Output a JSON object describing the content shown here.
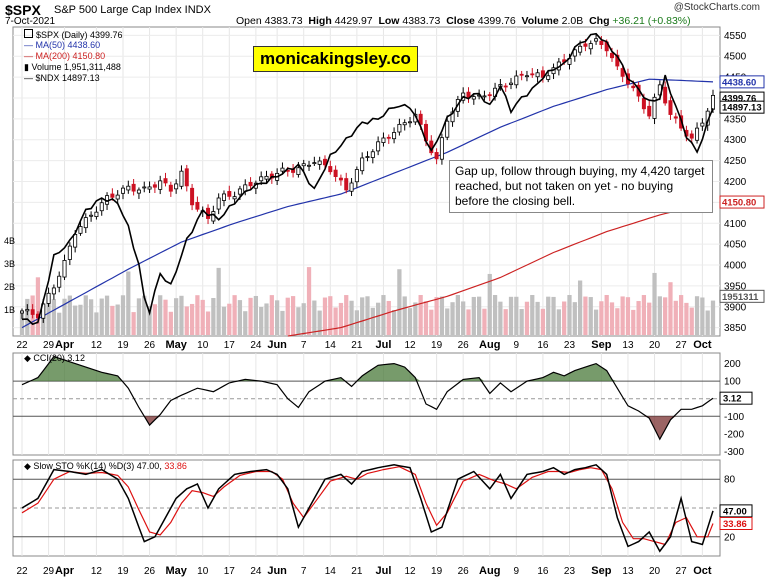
{
  "header": {
    "symbol": "$SPX",
    "name": "S&P 500 Large Cap Index INDX",
    "date": "7-Oct-2021",
    "copyright": "@StockCharts.com",
    "open_label": "Open",
    "open": "4383.73",
    "high_label": "High",
    "high": "4429.97",
    "low_label": "Low",
    "low": "4383.73",
    "close_label": "Close",
    "close": "4399.76",
    "volume_label": "Volume",
    "volume": "2.0B",
    "chg_label": "Chg",
    "chg": "+36.21 (+0.83%)"
  },
  "brand": "monicakingsley.co",
  "annotation": "Gap up, follow through buying, my 4,420 target reached, but not taken on yet - no buying before the closing bell.",
  "colors": {
    "up": "#000000",
    "down": "#cc1122",
    "ma50": "#2233aa",
    "ma200": "#cc2222",
    "ndx": "#000000",
    "vol_up": "#c0c0c0",
    "vol_down": "#f0b0b8",
    "cci_fill_pos": "#4a7a3a",
    "cci_fill_neg": "#7a3030",
    "stoch_d": "#dd1111"
  },
  "chart_data": [
    {
      "type": "candlestick",
      "title": "$SPX (Daily) 4399.76",
      "legend": [
        {
          "name": "$SPX (Daily)",
          "value": "4399.76"
        },
        {
          "name": "MA(50)",
          "value": "4438.60"
        },
        {
          "name": "MA(200)",
          "value": "4150.80"
        },
        {
          "name": "Volume",
          "value": "1,951,311,488"
        },
        {
          "name": "$NDX",
          "value": "14897.13"
        }
      ],
      "ylim": [
        3830,
        4570
      ],
      "y_ticks": [
        3850,
        3900,
        3950,
        4000,
        4050,
        4100,
        4150,
        4200,
        4250,
        4300,
        4350,
        4400,
        4450,
        4500,
        4550
      ],
      "volume_labels": [
        "4B",
        "3B",
        "2B",
        "1B"
      ],
      "value_tags": [
        {
          "label": "4438.60",
          "value": 4438.6
        },
        {
          "label": "4399.76",
          "value": 4399.76
        },
        {
          "label": "14897.13",
          "value": 4378
        },
        {
          "label": "4150.80",
          "value": 4150.8
        },
        {
          "label": "1951311",
          "value": 3925
        }
      ],
      "x_labels": [
        "22",
        "29",
        "Apr",
        "12",
        "19",
        "26",
        "May",
        "10",
        "17",
        "24",
        "Jun",
        "7",
        "14",
        "21",
        "Jul",
        "12",
        "19",
        "26",
        "Aug",
        "9",
        "16",
        "23",
        "Sep",
        "13",
        "20",
        "27",
        "Oct"
      ],
      "x_label_index": [
        0,
        5,
        8,
        14,
        19,
        24,
        29,
        34,
        39,
        44,
        48,
        53,
        58,
        63,
        68,
        73,
        78,
        83,
        88,
        93,
        98,
        103,
        109,
        114,
        119,
        124,
        128
      ],
      "close_anchors": [
        [
          0,
          3890
        ],
        [
          3,
          3880
        ],
        [
          6,
          3950
        ],
        [
          8,
          4005
        ],
        [
          10,
          4080
        ],
        [
          13,
          4120
        ],
        [
          16,
          4160
        ],
        [
          20,
          4185
        ],
        [
          23,
          4180
        ],
        [
          26,
          4200
        ],
        [
          28,
          4180
        ],
        [
          30,
          4220
        ],
        [
          32,
          4150
        ],
        [
          35,
          4110
        ],
        [
          37,
          4160
        ],
        [
          40,
          4170
        ],
        [
          43,
          4195
        ],
        [
          46,
          4210
        ],
        [
          49,
          4225
        ],
        [
          52,
          4230
        ],
        [
          55,
          4250
        ],
        [
          58,
          4230
        ],
        [
          61,
          4180
        ],
        [
          64,
          4250
        ],
        [
          67,
          4290
        ],
        [
          70,
          4320
        ],
        [
          72,
          4340
        ],
        [
          74,
          4360
        ],
        [
          76,
          4300
        ],
        [
          78,
          4250
        ],
        [
          80,
          4350
        ],
        [
          83,
          4410
        ],
        [
          86,
          4400
        ],
        [
          89,
          4420
        ],
        [
          92,
          4440
        ],
        [
          95,
          4460
        ],
        [
          98,
          4450
        ],
        [
          101,
          4480
        ],
        [
          104,
          4510
        ],
        [
          106,
          4530
        ],
        [
          108,
          4535
        ],
        [
          110,
          4520
        ],
        [
          112,
          4470
        ],
        [
          114,
          4440
        ],
        [
          116,
          4400
        ],
        [
          118,
          4360
        ],
        [
          120,
          4430
        ],
        [
          122,
          4360
        ],
        [
          124,
          4330
        ],
        [
          126,
          4300
        ],
        [
          128,
          4345
        ],
        [
          130,
          4400
        ]
      ],
      "ndx_anchors": [
        [
          0,
          3870
        ],
        [
          3,
          3860
        ],
        [
          6,
          4020
        ],
        [
          9,
          4055
        ],
        [
          12,
          4130
        ],
        [
          15,
          4160
        ],
        [
          18,
          4150
        ],
        [
          20,
          4090
        ],
        [
          22,
          4000
        ],
        [
          23,
          3920
        ],
        [
          24,
          3890
        ],
        [
          26,
          3980
        ],
        [
          28,
          3950
        ],
        [
          31,
          4060
        ],
        [
          34,
          4130
        ],
        [
          37,
          4110
        ],
        [
          40,
          4150
        ],
        [
          43,
          4185
        ],
        [
          46,
          4200
        ],
        [
          49,
          4220
        ],
        [
          52,
          4240
        ],
        [
          55,
          4180
        ],
        [
          58,
          4260
        ],
        [
          61,
          4300
        ],
        [
          64,
          4340
        ],
        [
          67,
          4350
        ],
        [
          70,
          4380
        ],
        [
          73,
          4380
        ],
        [
          75,
          4330
        ],
        [
          77,
          4270
        ],
        [
          80,
          4350
        ],
        [
          83,
          4400
        ],
        [
          86,
          4410
        ],
        [
          88,
          4380
        ],
        [
          90,
          4430
        ],
        [
          92,
          4370
        ],
        [
          94,
          4400
        ],
        [
          96,
          4420
        ],
        [
          98,
          4450
        ],
        [
          100,
          4470
        ],
        [
          102,
          4480
        ],
        [
          104,
          4520
        ],
        [
          106,
          4540
        ],
        [
          108,
          4555
        ],
        [
          110,
          4530
        ],
        [
          112,
          4500
        ],
        [
          114,
          4450
        ],
        [
          116,
          4420
        ],
        [
          118,
          4390
        ],
        [
          120,
          4400
        ],
        [
          121,
          4450
        ],
        [
          123,
          4380
        ],
        [
          125,
          4310
        ],
        [
          127,
          4270
        ],
        [
          129,
          4340
        ],
        [
          130,
          4378
        ]
      ],
      "ma50_anchors": [
        [
          0,
          3850
        ],
        [
          10,
          3920
        ],
        [
          20,
          3990
        ],
        [
          30,
          4055
        ],
        [
          40,
          4100
        ],
        [
          50,
          4140
        ],
        [
          60,
          4170
        ],
        [
          70,
          4220
        ],
        [
          80,
          4270
        ],
        [
          90,
          4330
        ],
        [
          100,
          4380
        ],
        [
          110,
          4420
        ],
        [
          118,
          4445
        ],
        [
          124,
          4442
        ],
        [
          130,
          4438.6
        ]
      ],
      "ma200_anchors": [
        [
          50,
          3830
        ],
        [
          60,
          3850
        ],
        [
          70,
          3890
        ],
        [
          80,
          3925
        ],
        [
          90,
          3970
        ],
        [
          100,
          4030
        ],
        [
          110,
          4080
        ],
        [
          120,
          4120
        ],
        [
          130,
          4150.8
        ]
      ]
    },
    {
      "type": "line",
      "title": "CCI(20) 3.12",
      "series": [
        {
          "name": "CCI(20)",
          "last": "3.12"
        }
      ],
      "ylim": [
        -320,
        260
      ],
      "y_ticks": [
        200,
        100,
        -100,
        -200,
        -300
      ],
      "levels": [
        100,
        0,
        -100
      ],
      "value_tag": "3.12",
      "anchors": [
        [
          0,
          80
        ],
        [
          3,
          120
        ],
        [
          6,
          240
        ],
        [
          9,
          210
        ],
        [
          12,
          180
        ],
        [
          15,
          150
        ],
        [
          18,
          130
        ],
        [
          20,
          60
        ],
        [
          22,
          -50
        ],
        [
          24,
          -150
        ],
        [
          26,
          -90
        ],
        [
          28,
          -10
        ],
        [
          30,
          20
        ],
        [
          33,
          60
        ],
        [
          36,
          40
        ],
        [
          39,
          90
        ],
        [
          42,
          110
        ],
        [
          45,
          100
        ],
        [
          48,
          80
        ],
        [
          50,
          0
        ],
        [
          52,
          -50
        ],
        [
          54,
          40
        ],
        [
          57,
          100
        ],
        [
          60,
          120
        ],
        [
          62,
          70
        ],
        [
          64,
          130
        ],
        [
          67,
          190
        ],
        [
          70,
          200
        ],
        [
          72,
          180
        ],
        [
          74,
          120
        ],
        [
          76,
          -30
        ],
        [
          78,
          -60
        ],
        [
          80,
          40
        ],
        [
          83,
          110
        ],
        [
          86,
          120
        ],
        [
          88,
          30
        ],
        [
          90,
          90
        ],
        [
          92,
          40
        ],
        [
          95,
          100
        ],
        [
          98,
          120
        ],
        [
          100,
          150
        ],
        [
          102,
          130
        ],
        [
          104,
          160
        ],
        [
          106,
          180
        ],
        [
          108,
          200
        ],
        [
          110,
          160
        ],
        [
          112,
          60
        ],
        [
          114,
          -40
        ],
        [
          116,
          -70
        ],
        [
          118,
          -110
        ],
        [
          120,
          -230
        ],
        [
          122,
          -120
        ],
        [
          124,
          -60
        ],
        [
          126,
          -60
        ],
        [
          128,
          -40
        ],
        [
          130,
          3.12
        ]
      ]
    },
    {
      "type": "line",
      "title": "Slow STO %K(14) %D(3) 47.00, 33.86",
      "series": [
        {
          "name": "%K(14)",
          "last": "47.00"
        },
        {
          "name": "%D(3)",
          "last": "33.86"
        }
      ],
      "ylim": [
        0,
        100
      ],
      "y_ticks": [
        80,
        50,
        20
      ],
      "levels": [
        80,
        50,
        20
      ],
      "value_tags": [
        "47.00",
        "33.86"
      ],
      "k_anchors": [
        [
          0,
          50
        ],
        [
          3,
          60
        ],
        [
          6,
          90
        ],
        [
          9,
          88
        ],
        [
          12,
          85
        ],
        [
          15,
          90
        ],
        [
          18,
          80
        ],
        [
          20,
          60
        ],
        [
          22,
          30
        ],
        [
          23,
          15
        ],
        [
          25,
          20
        ],
        [
          27,
          40
        ],
        [
          29,
          60
        ],
        [
          31,
          70
        ],
        [
          33,
          75
        ],
        [
          35,
          50
        ],
        [
          37,
          70
        ],
        [
          40,
          85
        ],
        [
          43,
          88
        ],
        [
          46,
          90
        ],
        [
          48,
          85
        ],
        [
          50,
          70
        ],
        [
          52,
          30
        ],
        [
          54,
          50
        ],
        [
          57,
          80
        ],
        [
          60,
          85
        ],
        [
          62,
          75
        ],
        [
          64,
          88
        ],
        [
          67,
          92
        ],
        [
          70,
          95
        ],
        [
          73,
          92
        ],
        [
          75,
          60
        ],
        [
          77,
          25
        ],
        [
          79,
          30
        ],
        [
          82,
          80
        ],
        [
          85,
          88
        ],
        [
          88,
          70
        ],
        [
          90,
          85
        ],
        [
          92,
          60
        ],
        [
          95,
          85
        ],
        [
          98,
          88
        ],
        [
          100,
          92
        ],
        [
          102,
          85
        ],
        [
          104,
          90
        ],
        [
          106,
          92
        ],
        [
          108,
          95
        ],
        [
          110,
          85
        ],
        [
          112,
          40
        ],
        [
          114,
          10
        ],
        [
          116,
          15
        ],
        [
          118,
          25
        ],
        [
          120,
          5
        ],
        [
          122,
          20
        ],
        [
          124,
          60
        ],
        [
          126,
          15
        ],
        [
          128,
          12
        ],
        [
          130,
          47
        ]
      ],
      "d_anchors": [
        [
          0,
          45
        ],
        [
          3,
          55
        ],
        [
          6,
          80
        ],
        [
          9,
          88
        ],
        [
          12,
          86
        ],
        [
          15,
          87
        ],
        [
          18,
          84
        ],
        [
          20,
          72
        ],
        [
          22,
          48
        ],
        [
          24,
          25
        ],
        [
          26,
          22
        ],
        [
          28,
          35
        ],
        [
          30,
          55
        ],
        [
          32,
          68
        ],
        [
          34,
          66
        ],
        [
          36,
          62
        ],
        [
          38,
          72
        ],
        [
          41,
          84
        ],
        [
          44,
          88
        ],
        [
          47,
          88
        ],
        [
          49,
          80
        ],
        [
          51,
          55
        ],
        [
          53,
          40
        ],
        [
          55,
          55
        ],
        [
          58,
          78
        ],
        [
          61,
          83
        ],
        [
          63,
          80
        ],
        [
          65,
          86
        ],
        [
          68,
          90
        ],
        [
          71,
          93
        ],
        [
          74,
          85
        ],
        [
          76,
          55
        ],
        [
          78,
          32
        ],
        [
          80,
          45
        ],
        [
          83,
          78
        ],
        [
          86,
          85
        ],
        [
          89,
          78
        ],
        [
          91,
          75
        ],
        [
          93,
          70
        ],
        [
          96,
          82
        ],
        [
          99,
          88
        ],
        [
          101,
          88
        ],
        [
          103,
          87
        ],
        [
          105,
          90
        ],
        [
          107,
          92
        ],
        [
          109,
          90
        ],
        [
          111,
          70
        ],
        [
          113,
          35
        ],
        [
          115,
          18
        ],
        [
          117,
          18
        ],
        [
          119,
          15
        ],
        [
          121,
          12
        ],
        [
          123,
          35
        ],
        [
          125,
          40
        ],
        [
          127,
          20
        ],
        [
          129,
          20
        ],
        [
          130,
          33.86
        ]
      ]
    }
  ]
}
